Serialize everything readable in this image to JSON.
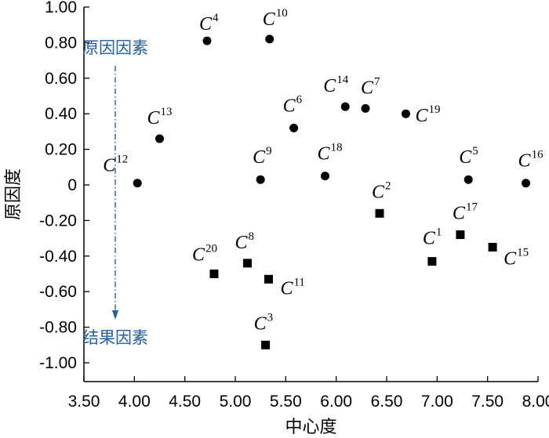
{
  "chart_data": {
    "type": "scatter",
    "title": "",
    "xlabel": "中心度",
    "ylabel": "原因度",
    "xlim": [
      3.5,
      8.0
    ],
    "ylim": [
      -1.1,
      1.0
    ],
    "xticks": [
      "3.50",
      "4.00",
      "4.50",
      "5.00",
      "5.50",
      "6.00",
      "6.50",
      "7.00",
      "7.50",
      "8.00"
    ],
    "yticks": [
      "1.00",
      "0.80",
      "0.60",
      "0.40",
      "0.20",
      "0",
      "-0.20",
      "-0.40",
      "-0.60",
      "-0.80",
      "-1.00"
    ],
    "grid": false,
    "series": [
      {
        "marker": "circle",
        "points": [
          {
            "label": "C",
            "sub": "4",
            "x": 4.72,
            "y": 0.81
          },
          {
            "label": "C",
            "sub": "10",
            "x": 5.34,
            "y": 0.82
          },
          {
            "label": "C",
            "sub": "14",
            "x": 6.09,
            "y": 0.44
          },
          {
            "label": "C",
            "sub": "7",
            "x": 6.29,
            "y": 0.43
          },
          {
            "label": "C",
            "sub": "19",
            "x": 6.69,
            "y": 0.4
          },
          {
            "label": "C",
            "sub": "6",
            "x": 5.58,
            "y": 0.32
          },
          {
            "label": "C",
            "sub": "13",
            "x": 4.25,
            "y": 0.26
          },
          {
            "label": "C",
            "sub": "12",
            "x": 4.03,
            "y": 0.01
          },
          {
            "label": "C",
            "sub": "9",
            "x": 5.25,
            "y": 0.03
          },
          {
            "label": "C",
            "sub": "18",
            "x": 5.89,
            "y": 0.05
          },
          {
            "label": "C",
            "sub": "5",
            "x": 7.31,
            "y": 0.03
          },
          {
            "label": "C",
            "sub": "16",
            "x": 7.88,
            "y": 0.01
          }
        ]
      },
      {
        "marker": "square",
        "points": [
          {
            "label": "C",
            "sub": "2",
            "x": 6.43,
            "y": -0.16
          },
          {
            "label": "C",
            "sub": "17",
            "x": 7.23,
            "y": -0.28
          },
          {
            "label": "C",
            "sub": "15",
            "x": 7.55,
            "y": -0.35
          },
          {
            "label": "C",
            "sub": "1",
            "x": 6.95,
            "y": -0.43
          },
          {
            "label": "C",
            "sub": "8",
            "x": 5.12,
            "y": -0.44
          },
          {
            "label": "C",
            "sub": "20",
            "x": 4.79,
            "y": -0.5
          },
          {
            "label": "C",
            "sub": "11",
            "x": 5.33,
            "y": -0.53
          },
          {
            "label": "C",
            "sub": "3",
            "x": 5.3,
            "y": -0.9
          }
        ]
      }
    ],
    "annotations": {
      "cause": "原因因素",
      "effect": "结果因素",
      "color": "#1f5fa8"
    }
  }
}
